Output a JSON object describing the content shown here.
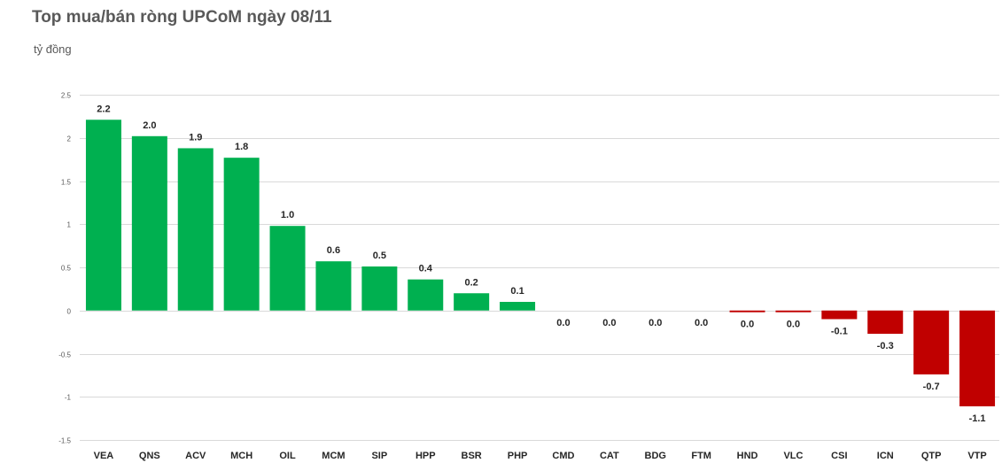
{
  "chart_data": {
    "type": "bar",
    "title": "Top mua/bán ròng UPCoM ngày 08/11",
    "ylabel": "tỷ đồng",
    "xlabel": "",
    "ylim": [
      -1.5,
      2.5
    ],
    "ytick_values": [
      2.5,
      2,
      1.5,
      1,
      0.5,
      0,
      -0.5,
      -1,
      -1.5
    ],
    "ytick_labels": [
      "2.5",
      "2",
      "1.5",
      "1",
      "0.5",
      "0",
      "-0.5",
      "-1",
      "-1.5"
    ],
    "grid": true,
    "categories": [
      "VEA",
      "QNS",
      "ACV",
      "MCH",
      "OIL",
      "MCM",
      "SIP",
      "HPP",
      "BSR",
      "PHP",
      "CMD",
      "CAT",
      "BDG",
      "FTM",
      "HND",
      "VLC",
      "CSI",
      "ICN",
      "QTP",
      "VTP"
    ],
    "values": [
      2.21,
      2.02,
      1.88,
      1.77,
      0.98,
      0.57,
      0.51,
      0.36,
      0.2,
      0.1,
      0.0,
      0.0,
      0.0,
      0.0,
      -0.02,
      -0.02,
      -0.1,
      -0.27,
      -0.74,
      -1.11
    ],
    "value_labels": [
      "2.2",
      "2.0",
      "1.9",
      "1.8",
      "1.0",
      "0.6",
      "0.5",
      "0.4",
      "0.2",
      "0.1",
      "0.0",
      "0.0",
      "0.0",
      "0.0",
      "0.0",
      "0.0",
      "-0.1",
      "-0.3",
      "-0.7",
      "-1.1"
    ],
    "colors": {
      "positive": "#00b050",
      "negative": "#c00000",
      "grid": "#d9d9d9"
    }
  }
}
